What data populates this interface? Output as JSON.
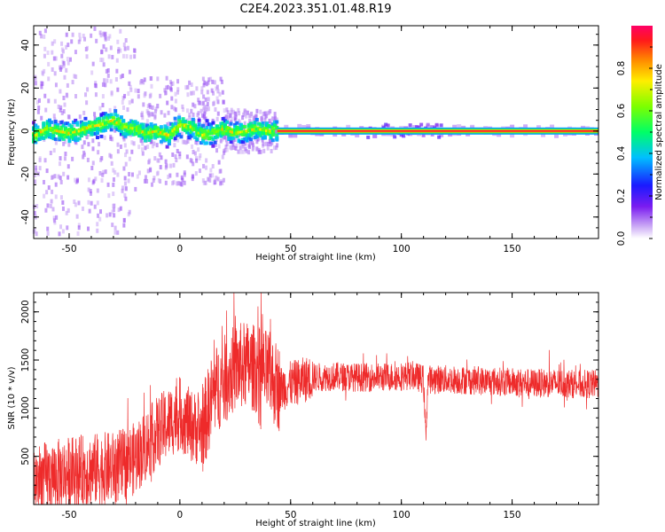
{
  "title": "C2E4.2023.351.01.48.R19",
  "colors": {
    "snr_line": "#ee2a2a",
    "axes": "#000000",
    "background": "#ffffff"
  },
  "chart_data": [
    {
      "type": "heatmap",
      "xlabel": "Height of straight line (km)",
      "ylabel": "Frequency (Hz)",
      "xlim": [
        -66,
        189
      ],
      "ylim": [
        -50,
        49
      ],
      "xticks": [
        -50,
        0,
        50,
        100,
        150
      ],
      "yticks": [
        -40,
        -20,
        0,
        20,
        40
      ],
      "colorbar": {
        "label": "Normalized spectral amplitude",
        "range": [
          0,
          1
        ],
        "ticks": [
          "0.0",
          "0.2",
          "0.4",
          "0.6",
          "0.8"
        ],
        "colormap": "rainbow"
      },
      "ridge": [
        {
          "x": -65,
          "y": -2
        },
        {
          "x": -60,
          "y": 1
        },
        {
          "x": -55,
          "y": 0
        },
        {
          "x": -50,
          "y": -1
        },
        {
          "x": -45,
          "y": 0
        },
        {
          "x": -40,
          "y": 2
        },
        {
          "x": -35,
          "y": 3
        },
        {
          "x": -30,
          "y": 5
        },
        {
          "x": -25,
          "y": 2
        },
        {
          "x": -20,
          "y": 1
        },
        {
          "x": -15,
          "y": -1
        },
        {
          "x": -10,
          "y": 0
        },
        {
          "x": -5,
          "y": -2
        },
        {
          "x": 0,
          "y": 3
        },
        {
          "x": 5,
          "y": 2
        },
        {
          "x": 10,
          "y": -2
        },
        {
          "x": 15,
          "y": -1
        },
        {
          "x": 20,
          "y": 1
        },
        {
          "x": 25,
          "y": -1
        },
        {
          "x": 30,
          "y": 0
        },
        {
          "x": 35,
          "y": 1
        },
        {
          "x": 40,
          "y": 0
        },
        {
          "x": 45,
          "y": 0
        },
        {
          "x": 60,
          "y": 0
        },
        {
          "x": 80,
          "y": 0
        },
        {
          "x": 100,
          "y": 0
        },
        {
          "x": 120,
          "y": 0
        },
        {
          "x": 150,
          "y": 0
        },
        {
          "x": 189,
          "y": 0
        }
      ]
    },
    {
      "type": "line",
      "xlabel": "Height of straight line (km)",
      "ylabel": "SNR (10 * v/v)",
      "xlim": [
        -66,
        189
      ],
      "ylim": [
        0,
        2200
      ],
      "xticks": [
        -50,
        0,
        50,
        100,
        150
      ],
      "yticks": [
        500,
        1000,
        1500,
        2000
      ],
      "series": [
        {
          "values": [
            {
              "x": -66,
              "y": 250
            },
            {
              "x": -60,
              "y": 280
            },
            {
              "x": -50,
              "y": 330
            },
            {
              "x": -40,
              "y": 360
            },
            {
              "x": -30,
              "y": 380
            },
            {
              "x": -25,
              "y": 420
            },
            {
              "x": -20,
              "y": 480
            },
            {
              "x": -15,
              "y": 620
            },
            {
              "x": -10,
              "y": 750
            },
            {
              "x": -5,
              "y": 850
            },
            {
              "x": 0,
              "y": 940
            },
            {
              "x": 5,
              "y": 820
            },
            {
              "x": 10,
              "y": 760
            },
            {
              "x": 15,
              "y": 1150
            },
            {
              "x": 20,
              "y": 1300
            },
            {
              "x": 25,
              "y": 1420
            },
            {
              "x": 30,
              "y": 1450
            },
            {
              "x": 35,
              "y": 1400
            },
            {
              "x": 40,
              "y": 1350
            },
            {
              "x": 45,
              "y": 1200
            },
            {
              "x": 50,
              "y": 1250
            },
            {
              "x": 60,
              "y": 1320
            },
            {
              "x": 70,
              "y": 1330
            },
            {
              "x": 80,
              "y": 1320
            },
            {
              "x": 90,
              "y": 1320
            },
            {
              "x": 100,
              "y": 1330
            },
            {
              "x": 105,
              "y": 1340
            },
            {
              "x": 110,
              "y": 1300
            },
            {
              "x": 111,
              "y": 700
            },
            {
              "x": 112,
              "y": 1300
            },
            {
              "x": 120,
              "y": 1300
            },
            {
              "x": 130,
              "y": 1290
            },
            {
              "x": 140,
              "y": 1280
            },
            {
              "x": 150,
              "y": 1270
            },
            {
              "x": 160,
              "y": 1260
            },
            {
              "x": 170,
              "y": 1260
            },
            {
              "x": 180,
              "y": 1250
            },
            {
              "x": 189,
              "y": 1250
            }
          ]
        }
      ]
    }
  ]
}
